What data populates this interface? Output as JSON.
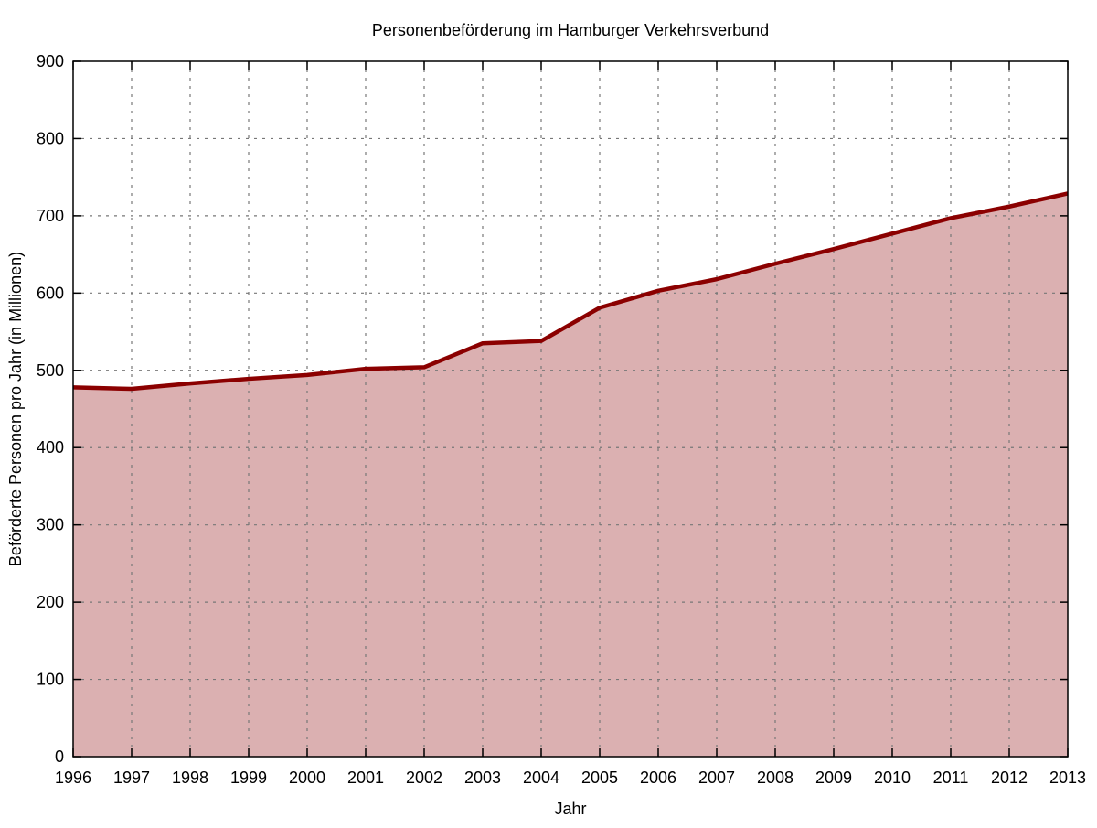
{
  "chart_data": {
    "type": "area",
    "title": "Personenbeförderung im Hamburger Verkehrsverbund",
    "xlabel": "Jahr",
    "ylabel": "Beförderte Personen pro Jahr (in Millionen)",
    "xlim": [
      1996,
      2013
    ],
    "ylim": [
      0,
      900
    ],
    "xticks": [
      1996,
      1997,
      1998,
      1999,
      2000,
      2001,
      2002,
      2003,
      2004,
      2005,
      2006,
      2007,
      2008,
      2009,
      2010,
      2011,
      2012,
      2013
    ],
    "yticks": [
      0,
      100,
      200,
      300,
      400,
      500,
      600,
      700,
      800,
      900
    ],
    "grid": true,
    "x": [
      1996,
      1997,
      1998,
      1999,
      2000,
      2001,
      2002,
      2003,
      2004,
      2005,
      2006,
      2007,
      2008,
      2009,
      2010,
      2011,
      2012,
      2013
    ],
    "values": [
      478,
      476,
      483,
      489,
      494,
      502,
      504,
      535,
      538,
      581,
      603,
      618,
      638,
      657,
      677,
      697,
      712,
      729
    ],
    "line_color": "#8b0000",
    "fill_color": "#dbb0b1"
  }
}
